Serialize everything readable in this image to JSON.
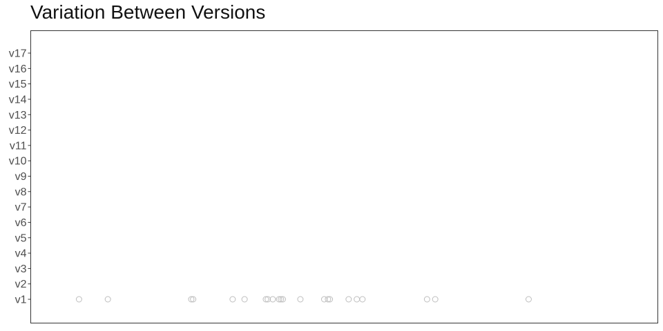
{
  "chart_data": {
    "type": "scatter",
    "title": "Variation Between Versions",
    "xlabel": "",
    "ylabel": "",
    "x_ticks_shown": false,
    "grid": false,
    "legend": "none",
    "categories": [
      "v1",
      "v2",
      "v3",
      "v4",
      "v5",
      "v6",
      "v7",
      "v8",
      "v9",
      "v10",
      "v11",
      "v12",
      "v13",
      "v14",
      "v15",
      "v16",
      "v17"
    ],
    "xlim": [
      0,
      1000
    ],
    "points": [
      {
        "version": "v1",
        "x": 77
      },
      {
        "version": "v1",
        "x": 123
      },
      {
        "version": "v1",
        "x": 256
      },
      {
        "version": "v1",
        "x": 259
      },
      {
        "version": "v1",
        "x": 322
      },
      {
        "version": "v1",
        "x": 341
      },
      {
        "version": "v1",
        "x": 375
      },
      {
        "version": "v1",
        "x": 378
      },
      {
        "version": "v1",
        "x": 386
      },
      {
        "version": "v1",
        "x": 396
      },
      {
        "version": "v1",
        "x": 399
      },
      {
        "version": "v1",
        "x": 402
      },
      {
        "version": "v1",
        "x": 430
      },
      {
        "version": "v1",
        "x": 468
      },
      {
        "version": "v1",
        "x": 474
      },
      {
        "version": "v1",
        "x": 477
      },
      {
        "version": "v1",
        "x": 507
      },
      {
        "version": "v1",
        "x": 520
      },
      {
        "version": "v1",
        "x": 529
      },
      {
        "version": "v1",
        "x": 632
      },
      {
        "version": "v1",
        "x": 645
      },
      {
        "version": "v1",
        "x": 794
      }
    ],
    "point_color": "#bdbdbd"
  }
}
